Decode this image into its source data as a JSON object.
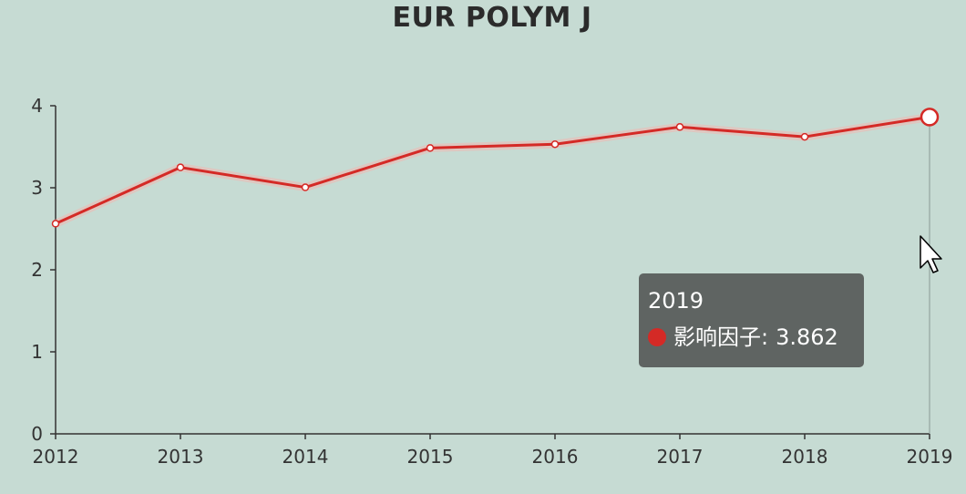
{
  "colors": {
    "background": "#c6dbd3",
    "line": "#d42a26",
    "axis": "#333333",
    "tooltip_bg": "#5a5e5c"
  },
  "chart_data": {
    "type": "line",
    "title": "EUR POLYM J",
    "xlabel": "",
    "ylabel": "",
    "categories": [
      "2012",
      "2013",
      "2014",
      "2015",
      "2016",
      "2017",
      "2018",
      "2019"
    ],
    "series": [
      {
        "name": "影响因子",
        "values": [
          2.562,
          3.248,
          3.005,
          3.485,
          3.531,
          3.741,
          3.621,
          3.862
        ]
      }
    ],
    "ylim": [
      0,
      4
    ],
    "yticks": [
      "0",
      "1",
      "2",
      "3",
      "4"
    ],
    "grid": false,
    "legend": "none"
  },
  "tooltip": {
    "title": "2019",
    "series_name": "影响因子:",
    "value": "3.862"
  },
  "cursor_icon": "mouse-pointer-icon"
}
